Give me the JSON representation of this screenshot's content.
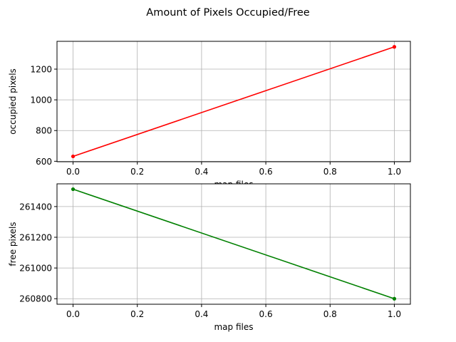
{
  "figure": {
    "title": "Amount of Pixels Occupied/Free",
    "background": "#ffffff"
  },
  "chart_data": [
    {
      "type": "line",
      "title": "",
      "xlabel": "map files",
      "ylabel": "occupied pixels",
      "x": [
        0,
        1
      ],
      "series": [
        {
          "values": [
            632,
            1345
          ],
          "color": "#ff0000",
          "marker": "dot"
        }
      ],
      "xlim": [
        -0.05,
        1.05
      ],
      "ylim": [
        597,
        1381
      ],
      "xticks": [
        0.0,
        0.2,
        0.4,
        0.6,
        0.8,
        1.0
      ],
      "xtick_labels": [
        "0.0",
        "0.2",
        "0.4",
        "0.6",
        "0.8",
        "1.0"
      ],
      "yticks": [
        600,
        800,
        1000,
        1200
      ],
      "ytick_labels": [
        "600",
        "800",
        "1000",
        "1200"
      ],
      "grid": true
    },
    {
      "type": "line",
      "title": "",
      "xlabel": "map files",
      "ylabel": "free pixels",
      "x": [
        0,
        1
      ],
      "series": [
        {
          "values": [
            261513,
            260800
          ],
          "color": "#008000",
          "marker": "dot"
        }
      ],
      "xlim": [
        -0.05,
        1.05
      ],
      "ylim": [
        260764,
        261548
      ],
      "xticks": [
        0.0,
        0.2,
        0.4,
        0.6,
        0.8,
        1.0
      ],
      "xtick_labels": [
        "0.0",
        "0.2",
        "0.4",
        "0.6",
        "0.8",
        "1.0"
      ],
      "yticks": [
        260800,
        261000,
        261200,
        261400
      ],
      "ytick_labels": [
        "260800",
        "261000",
        "261200",
        "261400"
      ],
      "grid": true
    }
  ]
}
